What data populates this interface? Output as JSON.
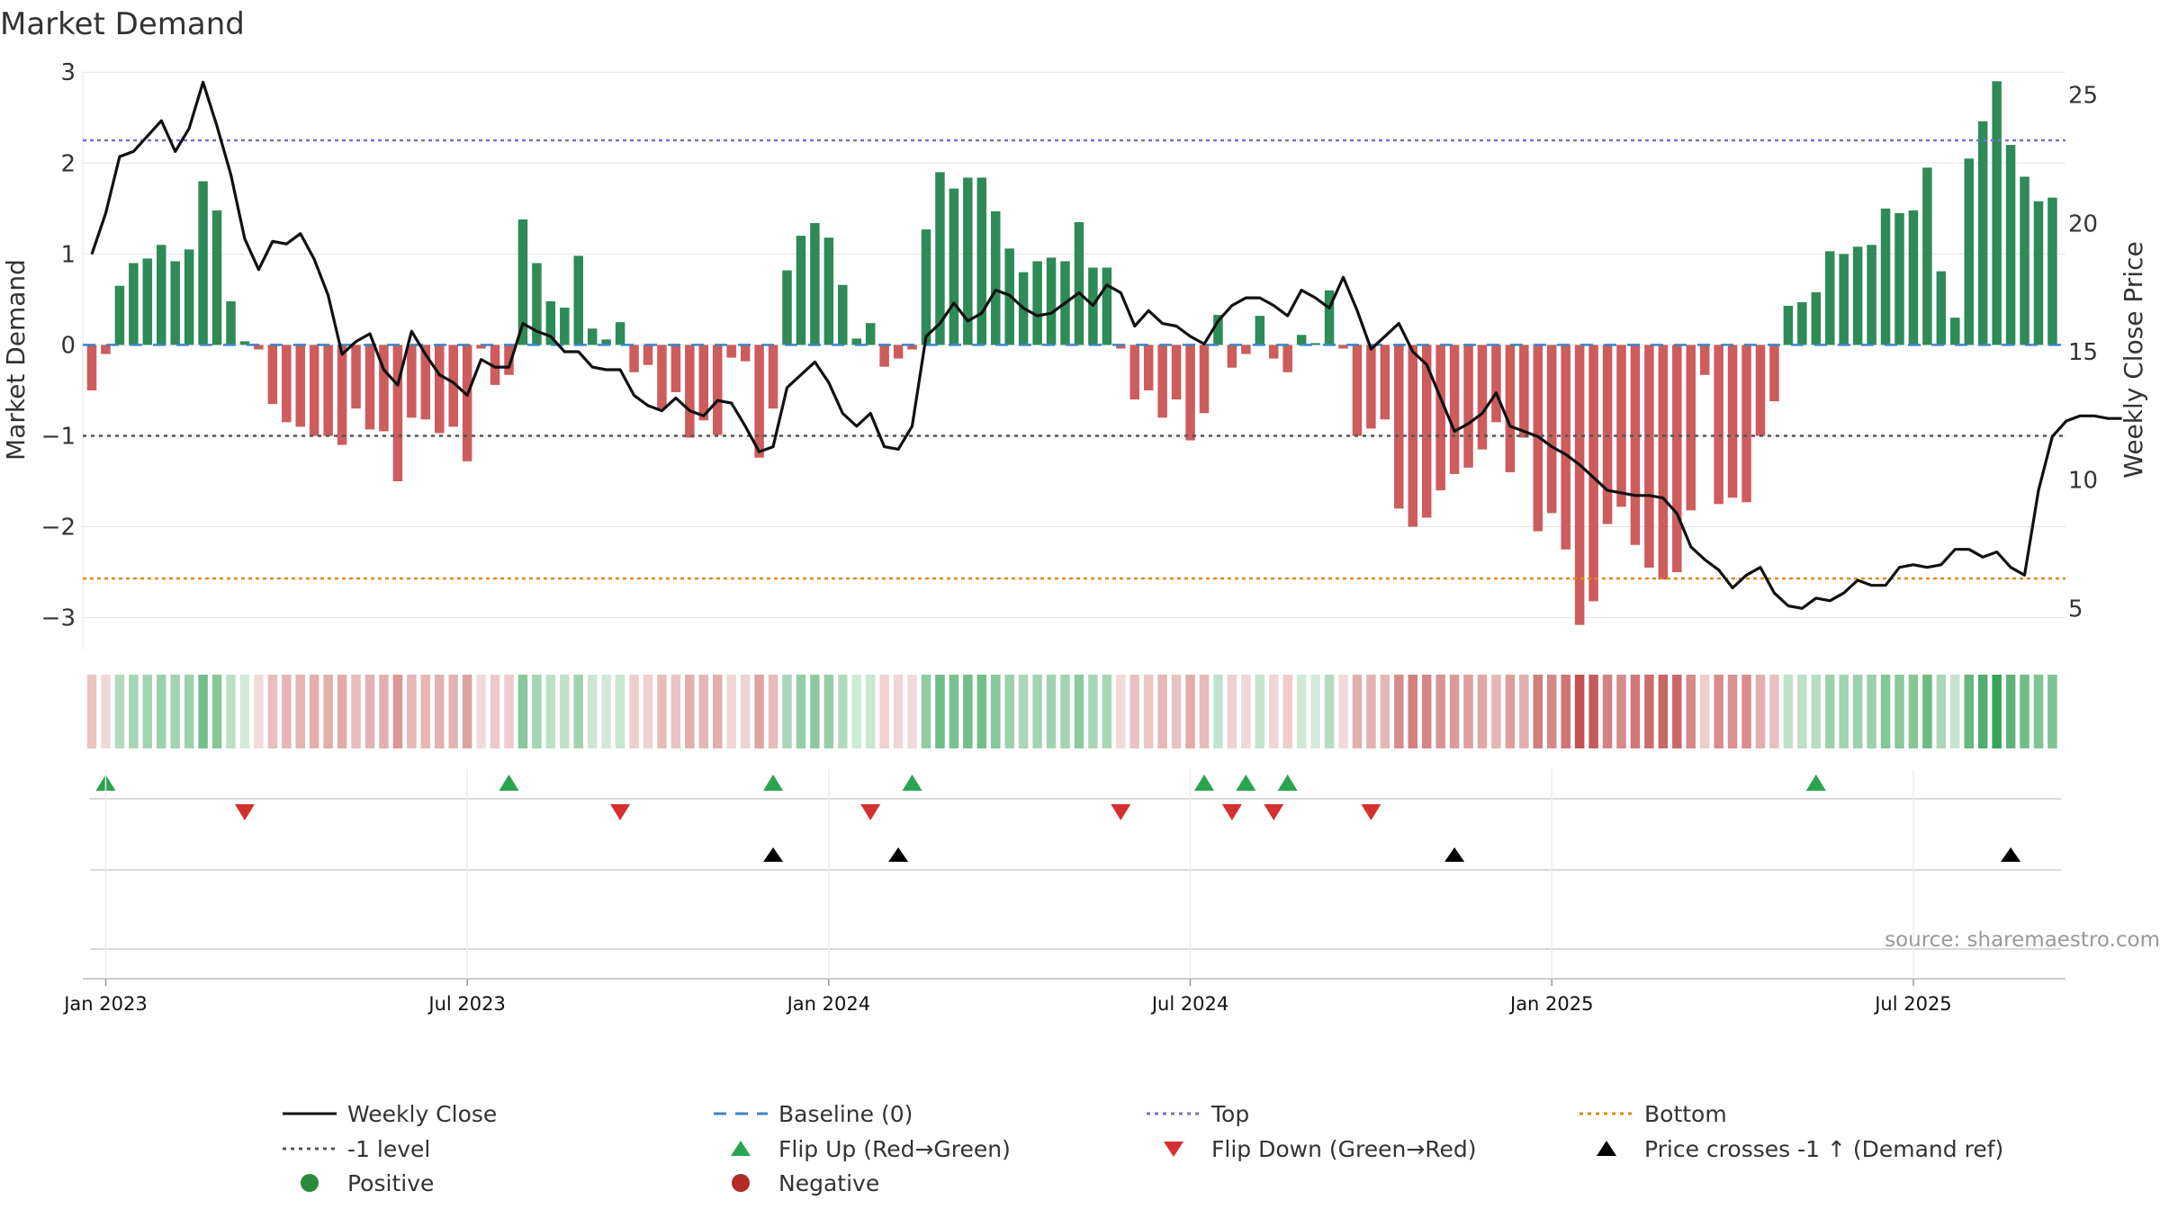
{
  "chart_data": {
    "type": "bar+line",
    "title": "Market Demand",
    "source": "source: sharemaestro.com",
    "left_axis": {
      "label": "Market Demand",
      "range": [
        -3.35,
        3.2
      ],
      "ticks": [
        3,
        2,
        1,
        0,
        -1,
        -2,
        -3
      ],
      "tick_labels": [
        "3",
        "2",
        "1",
        "0",
        "−1",
        "−2",
        "−3"
      ]
    },
    "right_axis": {
      "label": "Weekly Close Price",
      "range": [
        3.4,
        26.6
      ],
      "ticks": [
        25,
        20,
        15,
        10,
        5
      ],
      "tick_labels": [
        "25",
        "20",
        "15",
        "10",
        "5"
      ]
    },
    "x_axis": {
      "start": "2022-12-26",
      "step_weeks": 1,
      "ticks": [
        {
          "label": "Jan 2023",
          "week": 1
        },
        {
          "label": "Jul 2023",
          "week": 27
        },
        {
          "label": "Jan 2024",
          "week": 53
        },
        {
          "label": "Jul 2024",
          "week": 79
        },
        {
          "label": "Jan 2025",
          "week": 105
        },
        {
          "label": "Jul 2025",
          "week": 131
        }
      ]
    },
    "levels": {
      "top": 2.25,
      "bottom": -2.57,
      "minus_one": -1,
      "baseline": 0
    },
    "series": [
      {
        "name": "Market Demand",
        "type": "bar",
        "values": [
          -0.5,
          -0.1,
          0.65,
          0.9,
          0.95,
          1.1,
          0.92,
          1.05,
          1.8,
          1.48,
          0.48,
          0.04,
          -0.05,
          -0.65,
          -0.85,
          -0.9,
          -1.0,
          -1.0,
          -1.1,
          -0.7,
          -0.93,
          -0.95,
          -1.5,
          -0.8,
          -0.82,
          -0.97,
          -0.9,
          -1.28,
          -0.04,
          -0.44,
          -0.33,
          1.38,
          0.9,
          0.48,
          0.41,
          0.98,
          0.18,
          0.06,
          0.25,
          -0.3,
          -0.22,
          -0.7,
          -0.52,
          -1.02,
          -0.83,
          -0.99,
          -0.14,
          -0.18,
          -1.24,
          -0.7,
          0.82,
          1.2,
          1.34,
          1.18,
          0.66,
          0.07,
          0.24,
          -0.24,
          -0.15,
          -0.05,
          1.27,
          1.9,
          1.72,
          1.84,
          1.84,
          1.47,
          1.06,
          0.8,
          0.92,
          0.96,
          0.92,
          1.35,
          0.85,
          0.85,
          -0.04,
          -0.6,
          -0.5,
          -0.8,
          -0.6,
          -1.05,
          -0.75,
          0.33,
          -0.25,
          -0.1,
          0.32,
          -0.15,
          -0.3,
          0.11,
          0.02,
          0.6,
          -0.04,
          -1.0,
          -0.92,
          -0.82,
          -1.8,
          -2.0,
          -1.9,
          -1.6,
          -1.42,
          -1.35,
          -1.15,
          -0.85,
          -1.4,
          -1.02,
          -2.05,
          -1.85,
          -2.25,
          -3.08,
          -2.82,
          -1.97,
          -1.78,
          -2.2,
          -2.45,
          -2.58,
          -2.5,
          -1.82,
          -0.33,
          -1.75,
          -1.68,
          -1.73,
          -1.0,
          -0.62,
          0.43,
          0.47,
          0.58,
          1.03,
          1.0,
          1.08,
          1.1,
          1.5,
          1.45,
          1.48,
          1.95,
          0.81,
          0.3,
          2.05,
          2.46,
          2.9,
          2.2,
          1.85,
          1.58,
          1.62
        ]
      },
      {
        "name": "Weekly Close",
        "type": "line",
        "values": [
          18.8,
          20.4,
          22.6,
          22.8,
          23.4,
          24.0,
          22.8,
          23.7,
          25.5,
          23.8,
          21.9,
          19.4,
          18.2,
          19.3,
          19.2,
          19.6,
          18.6,
          17.2,
          14.9,
          15.4,
          15.7,
          14.3,
          13.7,
          15.8,
          14.9,
          14.1,
          13.8,
          13.3,
          14.7,
          14.4,
          14.4,
          16.1,
          15.8,
          15.6,
          15.0,
          15.0,
          14.4,
          14.3,
          14.3,
          13.3,
          12.9,
          12.7,
          13.2,
          12.7,
          12.5,
          13.1,
          13.0,
          12.1,
          11.1,
          11.3,
          13.6,
          14.1,
          14.6,
          13.8,
          12.6,
          12.1,
          12.6,
          11.3,
          11.2,
          12.1,
          15.6,
          16.1,
          16.9,
          16.2,
          16.5,
          17.4,
          17.2,
          16.7,
          16.4,
          16.5,
          16.9,
          17.3,
          16.8,
          17.6,
          17.3,
          16.0,
          16.6,
          16.1,
          16.0,
          15.6,
          15.3,
          16.2,
          16.8,
          17.1,
          17.1,
          16.8,
          16.4,
          17.4,
          17.1,
          16.7,
          17.9,
          16.6,
          15.1,
          15.6,
          16.1,
          15.0,
          14.5,
          13.2,
          11.9,
          12.2,
          12.6,
          13.4,
          12.1,
          11.9,
          11.7,
          11.3,
          11.0,
          10.6,
          10.1,
          9.6,
          9.5,
          9.4,
          9.4,
          9.3,
          8.7,
          7.4,
          6.9,
          6.5,
          5.8,
          6.3,
          6.6,
          5.6,
          5.1,
          5.0,
          5.4,
          5.3,
          5.6,
          6.1,
          5.9,
          5.9,
          6.6,
          6.7,
          6.6,
          6.7,
          7.3,
          7.3,
          7.0,
          7.2,
          6.6,
          6.3,
          9.6,
          11.7,
          12.3,
          12.5,
          12.5,
          12.4,
          12.4
        ]
      }
    ],
    "flip_up_weeks": [
      1,
      30,
      49,
      59,
      80,
      83,
      86,
      124
    ],
    "flip_down_weeks": [
      11,
      38,
      56,
      74,
      82,
      85,
      92
    ],
    "price_cross_weeks": [
      49,
      58,
      98,
      138
    ]
  },
  "legend": {
    "items": [
      {
        "label": "Weekly Close",
        "symbol": "line-solid",
        "color": "#111111"
      },
      {
        "label": "Baseline (0)",
        "symbol": "line-dash",
        "color": "#3a86c8"
      },
      {
        "label": "Top",
        "symbol": "line-dot",
        "color": "#7b6fd3"
      },
      {
        "label": "Bottom",
        "symbol": "line-dot",
        "color": "#e08a16"
      },
      {
        "label": "-1 level",
        "symbol": "line-dot",
        "color": "#555555"
      },
      {
        "label": "Flip Up (Red→Green)",
        "symbol": "triangle-up",
        "color": "#2aa44f"
      },
      {
        "label": "Flip Down (Green→Red)",
        "symbol": "triangle-down",
        "color": "#d62f2f"
      },
      {
        "label": "Price crosses -1 ↑ (Demand ref)",
        "symbol": "triangle-up",
        "color": "#000000"
      },
      {
        "label": "Positive",
        "symbol": "circle",
        "color": "#2a8a3a"
      },
      {
        "label": "Negative",
        "symbol": "circle",
        "color": "#b22a2a"
      }
    ]
  },
  "colors": {
    "positive_bar": "#2e8b57",
    "negative_bar": "#cd5c5c",
    "strip_green": "#2e9e4f",
    "strip_red": "#c0504d"
  }
}
